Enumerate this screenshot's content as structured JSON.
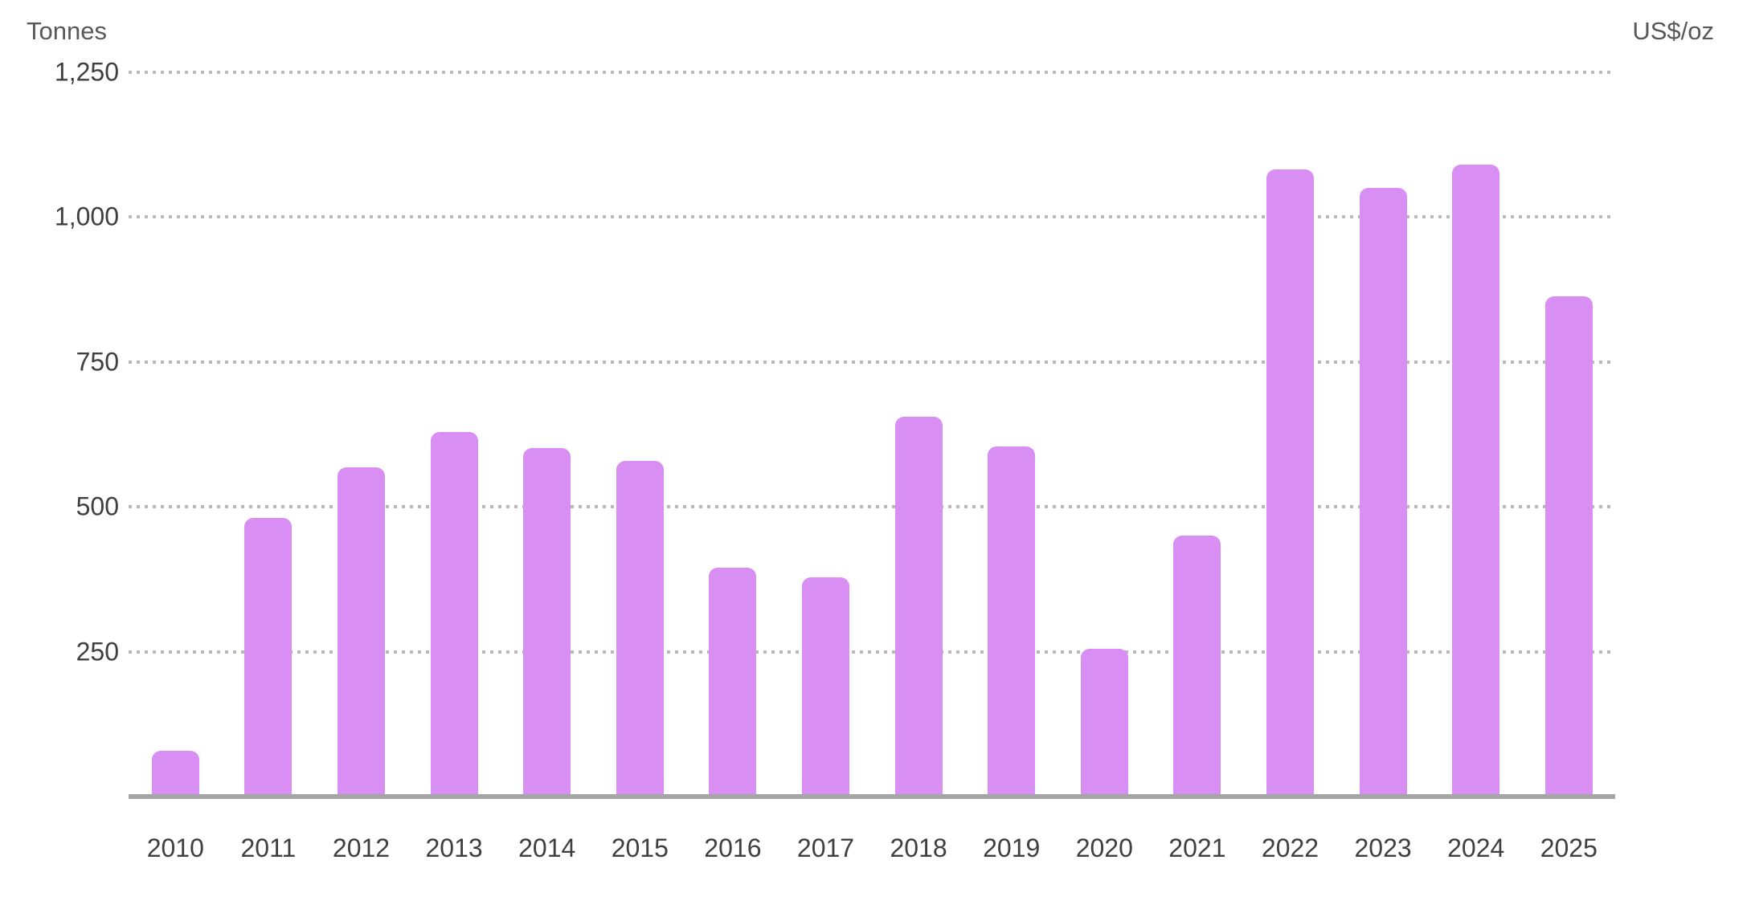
{
  "chart_data": {
    "type": "bar",
    "categories": [
      "2010",
      "2011",
      "2012",
      "2013",
      "2014",
      "2015",
      "2016",
      "2017",
      "2018",
      "2019",
      "2020",
      "2021",
      "2022",
      "2023",
      "2024",
      "2025"
    ],
    "values": [
      79,
      481,
      569,
      629,
      601,
      580,
      395,
      379,
      656,
      605,
      255,
      450,
      1082,
      1050,
      1090,
      863
    ],
    "left_axis": {
      "label": "Tonnes",
      "tick_values": [
        250,
        500,
        750,
        1000,
        1250
      ],
      "tick_labels": [
        "250",
        "500",
        "750",
        "1,000",
        "1,250"
      ]
    },
    "right_axis": {
      "label": "US$/oz",
      "tick_labels": []
    },
    "ylim": [
      0,
      1250
    ],
    "grid": {
      "horizontal": true,
      "style": "dotted",
      "color": "#b9b9b9"
    },
    "legend_position": "none",
    "colors": {
      "bar": "#d88ef2",
      "axis_line": "#a6a6a6",
      "tick_text": "#3f3f3f",
      "axis_title_text": "#58585a",
      "background": "#ffffff"
    }
  }
}
